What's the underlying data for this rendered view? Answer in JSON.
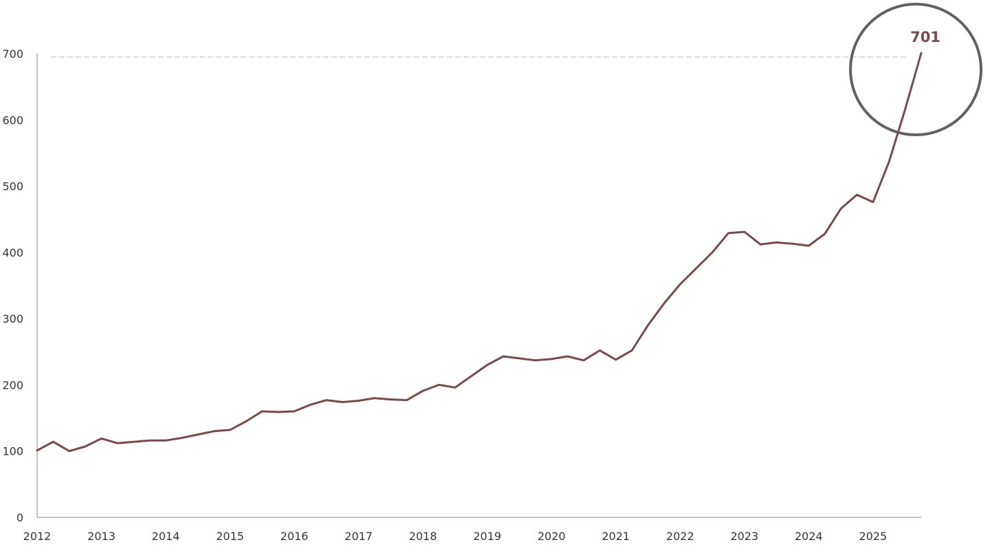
{
  "chart_data": {
    "type": "line",
    "title": "",
    "xlabel": "",
    "ylabel": "",
    "xlim": [
      2012.0,
      2025.75
    ],
    "ylim": [
      0,
      700
    ],
    "y_ticks": [
      0,
      100,
      200,
      300,
      400,
      500,
      600,
      700
    ],
    "x_ticks": [
      2012,
      2013,
      2014,
      2015,
      2016,
      2017,
      2018,
      2019,
      2020,
      2021,
      2022,
      2023,
      2024,
      2025
    ],
    "y_tick_labels": [
      "0",
      "100",
      "200",
      "300",
      "400",
      "500",
      "600",
      "700"
    ],
    "x_tick_labels": [
      "2012",
      "2013",
      "2014",
      "2015",
      "2016",
      "2017",
      "2018",
      "2019",
      "2020",
      "2021",
      "2022",
      "2023",
      "2024",
      "2025"
    ],
    "grid": false,
    "reference_line": {
      "y": 695,
      "style": "dashed"
    },
    "annotation": {
      "label": "701",
      "shape": "circle"
    },
    "colors": {
      "line": "#7e4848",
      "axis": "#9a9a9a",
      "reference": "#d8c6c6",
      "circle": "#616161"
    },
    "series": [
      {
        "x": [
          2012.0,
          2012.25,
          2012.5,
          2012.75,
          2013.0,
          2013.25,
          2013.5,
          2013.75,
          2014.0,
          2014.25,
          2014.5,
          2014.75,
          2015.0,
          2015.25,
          2015.5,
          2015.75,
          2016.0,
          2016.25,
          2016.5,
          2016.75,
          2017.0,
          2017.25,
          2017.5,
          2017.75,
          2018.0,
          2018.25,
          2018.5,
          2018.75,
          2019.0,
          2019.25,
          2019.5,
          2019.75,
          2020.0,
          2020.25,
          2020.5,
          2020.75,
          2021.0,
          2021.25,
          2021.5,
          2021.75,
          2022.0,
          2022.25,
          2022.5,
          2022.75,
          2023.0,
          2023.25,
          2023.5,
          2023.75,
          2024.0,
          2024.25,
          2024.5,
          2024.75,
          2025.0,
          2025.25,
          2025.5,
          2025.75
        ],
        "values": [
          101,
          114,
          100,
          107,
          119,
          112,
          114,
          116,
          116,
          120,
          125,
          130,
          132,
          145,
          160,
          159,
          160,
          170,
          177,
          174,
          176,
          180,
          178,
          177,
          191,
          200,
          196,
          213,
          230,
          243,
          240,
          237,
          239,
          243,
          237,
          252,
          238,
          252,
          290,
          323,
          352,
          376,
          400,
          429,
          431,
          412,
          415,
          413,
          410,
          428,
          466,
          487,
          476,
          537,
          616,
          701
        ]
      }
    ]
  }
}
